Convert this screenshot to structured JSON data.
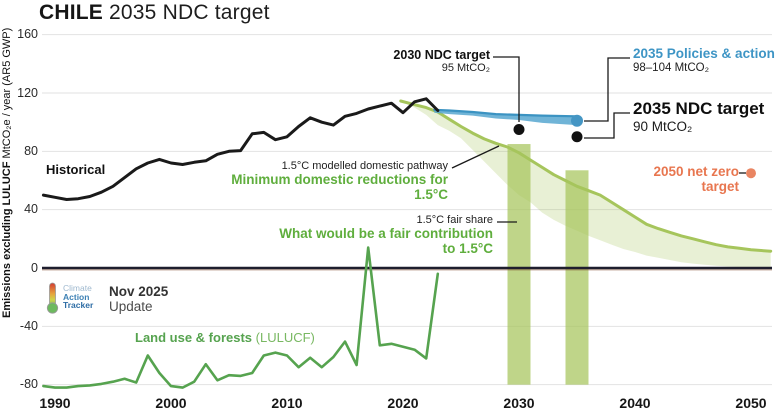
{
  "title": {
    "bold": "CHILE",
    "rest": " 2035 NDC target"
  },
  "y_axis": {
    "label_bold": "Emissions excluding LULUCF",
    "label_rest": " MtCO₂e / year (AR5 GWP)",
    "ticks": [
      160,
      120,
      80,
      40,
      0,
      -40,
      -80
    ]
  },
  "x_axis": {
    "ticks": [
      1990,
      2000,
      2010,
      2020,
      2030,
      2040,
      2050
    ]
  },
  "annotations": {
    "historical": "Historical",
    "ndc2030": {
      "title": "2030 NDC target",
      "value": "95 MtCO₂"
    },
    "pa2035": {
      "title": "2035 Policies & action",
      "value": "98–104 MtCO₂"
    },
    "ndc2035": {
      "title": "2035 NDC target",
      "value": "90 MtCO₂"
    },
    "domestic": {
      "plain": "1.5°C modelled domestic pathway",
      "bold": "Minimum domestic reductions for 1.5°C"
    },
    "fairshare": {
      "plain": "1.5°C fair share",
      "bold": "What would be a fair contribution to 1.5°C"
    },
    "netzero": "2050 net zero target",
    "lulucf_bold": "Land use & forests",
    "lulucf_rest": " (LULUCF)"
  },
  "logo": {
    "word1": "Climate",
    "word2": "Action",
    "word3": "Tracker",
    "date": "Nov 2025",
    "update": "Update"
  },
  "colors": {
    "historical": "#1a1a1a",
    "blue": "#57a7d0",
    "blue_dark": "#3b93c2",
    "blue_text": "#3e95c5",
    "green": "#a6c55c",
    "green_text": "#5fae3d",
    "lulucf": "#56a34f",
    "lulucf_light_text": "#79b862",
    "orange": "#e8764f",
    "grid": "#e2e2e2",
    "zero_line": "#1e1e2d",
    "logo_climate": "#9fb9cf",
    "logo_action": "#3c80b4",
    "logo_tracker": "#2e6da5"
  },
  "chart_data": {
    "type": "line",
    "title": "CHILE 2035 NDC target",
    "ylabel": "Emissions excluding LULUCF MtCO2e / year (AR5 GWP)",
    "xlim": [
      1989,
      2051.7
    ],
    "ylim": [
      -88,
      165
    ],
    "grid": "horizontal",
    "series": {
      "historical": {
        "name": "Historical",
        "points": [
          [
            1989,
            50
          ],
          [
            1990,
            48.5
          ],
          [
            1991,
            47
          ],
          [
            1992,
            47.5
          ],
          [
            1993,
            49
          ],
          [
            1994,
            52
          ],
          [
            1995,
            56
          ],
          [
            1996,
            62
          ],
          [
            1997,
            68
          ],
          [
            1998,
            72
          ],
          [
            1999,
            74.5
          ],
          [
            2000,
            72
          ],
          [
            2001,
            71
          ],
          [
            2002,
            72.5
          ],
          [
            2003,
            73.5
          ],
          [
            2004,
            78
          ],
          [
            2005,
            80
          ],
          [
            2006,
            80.5
          ],
          [
            2007,
            92
          ],
          [
            2008,
            93
          ],
          [
            2009,
            88
          ],
          [
            2010,
            90
          ],
          [
            2011,
            97
          ],
          [
            2012,
            103
          ],
          [
            2013,
            100
          ],
          [
            2014,
            98
          ],
          [
            2015,
            104
          ],
          [
            2016,
            106
          ],
          [
            2017,
            109
          ],
          [
            2018,
            111
          ],
          [
            2019,
            113
          ],
          [
            2020,
            106.5
          ],
          [
            2021,
            114
          ],
          [
            2022,
            116
          ],
          [
            2023,
            108
          ]
        ]
      },
      "policies_action": {
        "name": "2035 Policies & action (98-104 MtCO2)",
        "upper": [
          [
            2022.7,
            108.5
          ],
          [
            2024,
            108
          ],
          [
            2026,
            107
          ],
          [
            2028,
            105.5
          ],
          [
            2030,
            105
          ],
          [
            2032,
            104.5
          ],
          [
            2035,
            104
          ]
        ],
        "lower": [
          [
            2022.7,
            106.5
          ],
          [
            2024,
            105.5
          ],
          [
            2026,
            104.5
          ],
          [
            2028,
            102.5
          ],
          [
            2030,
            101.5
          ],
          [
            2032,
            99.5
          ],
          [
            2035,
            98
          ]
        ]
      },
      "domestic_pathway": {
        "name": "1.5C modelled domestic pathway (minimum domestic reductions)",
        "upper": [
          [
            2019.8,
            114.5
          ],
          [
            2021,
            112
          ],
          [
            2022,
            110
          ],
          [
            2023,
            107
          ],
          [
            2024,
            102
          ],
          [
            2025,
            97
          ],
          [
            2026,
            92.5
          ],
          [
            2027,
            88.5
          ],
          [
            2028,
            85.5
          ],
          [
            2029,
            83
          ],
          [
            2030,
            79
          ],
          [
            2031,
            74
          ],
          [
            2032,
            69
          ],
          [
            2033,
            64
          ],
          [
            2034,
            60
          ],
          [
            2035,
            56
          ],
          [
            2036,
            53
          ],
          [
            2037,
            50
          ],
          [
            2038,
            45
          ],
          [
            2039,
            40
          ],
          [
            2040,
            35
          ],
          [
            2041,
            30
          ],
          [
            2042,
            27
          ],
          [
            2043,
            24.5
          ],
          [
            2044,
            22
          ],
          [
            2045,
            20
          ],
          [
            2046,
            18
          ],
          [
            2047,
            16
          ],
          [
            2048,
            14.5
          ],
          [
            2049,
            13.5
          ],
          [
            2050,
            12.5
          ],
          [
            2051.7,
            11.5
          ]
        ],
        "lower": [
          [
            2019.8,
            114.5
          ],
          [
            2021,
            110
          ],
          [
            2022,
            105
          ],
          [
            2023,
            98
          ],
          [
            2024,
            94
          ],
          [
            2025,
            89
          ],
          [
            2026,
            81
          ],
          [
            2027,
            73
          ],
          [
            2028,
            65
          ],
          [
            2029,
            57
          ],
          [
            2030,
            50
          ],
          [
            2031,
            45
          ],
          [
            2032,
            38
          ],
          [
            2033,
            33
          ],
          [
            2034,
            29
          ],
          [
            2035,
            25.5
          ],
          [
            2036,
            22
          ],
          [
            2037,
            19
          ],
          [
            2038,
            16
          ],
          [
            2039,
            13
          ],
          [
            2040,
            11
          ],
          [
            2041,
            8.5
          ],
          [
            2042,
            7
          ],
          [
            2043,
            5.5
          ],
          [
            2044,
            4
          ],
          [
            2045,
            3
          ],
          [
            2046,
            2.2
          ],
          [
            2047,
            1.5
          ],
          [
            2048,
            1
          ],
          [
            2049,
            0.6
          ],
          [
            2050,
            0.3
          ],
          [
            2051.7,
            0.2
          ]
        ]
      },
      "fair_share_bars": [
        {
          "name": "1.5C fair share range 2030",
          "year": 2030,
          "top": 85,
          "bottom": -80
        },
        {
          "name": "1.5C fair share range 2035",
          "year": 2035,
          "top": 67,
          "bottom": -80
        }
      ],
      "lulucf": {
        "name": "Land use & forests (LULUCF)",
        "points": [
          [
            1989,
            -81
          ],
          [
            1990,
            -82
          ],
          [
            1991,
            -82
          ],
          [
            1992,
            -81
          ],
          [
            1993,
            -80.5
          ],
          [
            1994,
            -79.5
          ],
          [
            1995,
            -78
          ],
          [
            1996,
            -76
          ],
          [
            1997,
            -78.5
          ],
          [
            1998,
            -60
          ],
          [
            1999,
            -72
          ],
          [
            2000,
            -81
          ],
          [
            2001,
            -82
          ],
          [
            2002,
            -78
          ],
          [
            2003,
            -66
          ],
          [
            2004,
            -77
          ],
          [
            2005,
            -73.5
          ],
          [
            2006,
            -74
          ],
          [
            2007,
            -72
          ],
          [
            2008,
            -60
          ],
          [
            2009,
            -58
          ],
          [
            2010,
            -60
          ],
          [
            2011,
            -68
          ],
          [
            2012,
            -61.5
          ],
          [
            2013,
            -68
          ],
          [
            2014,
            -61
          ],
          [
            2015,
            -50.5
          ],
          [
            2016,
            -66.5
          ],
          [
            2017,
            14
          ],
          [
            2018,
            -53
          ],
          [
            2019,
            -52
          ],
          [
            2020,
            -54
          ],
          [
            2021,
            -56
          ],
          [
            2022,
            -62
          ],
          [
            2023,
            -4
          ]
        ]
      }
    },
    "markers": [
      {
        "name": "marker-2030-ndc-target",
        "label": "2030 NDC target",
        "year": 2030,
        "value": 95,
        "color": "#111111",
        "r": 5.5
      },
      {
        "name": "marker-2035-ndc-target",
        "label": "2035 NDC target",
        "year": 2035,
        "value": 90,
        "color": "#111111",
        "r": 5.5
      },
      {
        "name": "marker-2035-policies-action",
        "label": "2035 Policies & action",
        "year": 2035,
        "value": 101,
        "color": "#4596c4",
        "r": 6
      },
      {
        "name": "marker-2050-net-zero-target",
        "label": "2050 net zero target",
        "year": 2050,
        "value": 65,
        "color": "#e98562",
        "r": 5
      }
    ]
  }
}
